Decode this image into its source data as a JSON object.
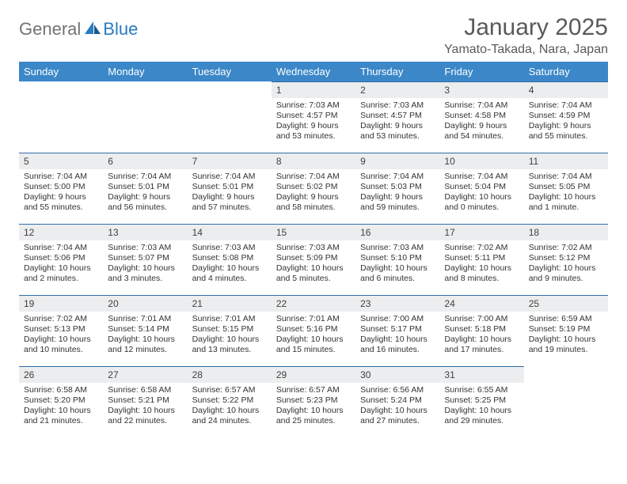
{
  "logo": {
    "part1": "General",
    "part2": "Blue"
  },
  "title": "January 2025",
  "location": "Yamato-Takada, Nara, Japan",
  "colors": {
    "header_bg": "#3b87c8",
    "header_text": "#ffffff",
    "daynum_bg": "#ecedee",
    "row_border": "#2f6fa8",
    "logo_gray": "#737373",
    "logo_blue": "#2b7bbf",
    "body_text": "#333333"
  },
  "weekdays": [
    "Sunday",
    "Monday",
    "Tuesday",
    "Wednesday",
    "Thursday",
    "Friday",
    "Saturday"
  ],
  "first_weekday_index": 3,
  "days": [
    {
      "n": 1,
      "sunrise": "7:03 AM",
      "sunset": "4:57 PM",
      "daylight": "9 hours and 53 minutes."
    },
    {
      "n": 2,
      "sunrise": "7:03 AM",
      "sunset": "4:57 PM",
      "daylight": "9 hours and 53 minutes."
    },
    {
      "n": 3,
      "sunrise": "7:04 AM",
      "sunset": "4:58 PM",
      "daylight": "9 hours and 54 minutes."
    },
    {
      "n": 4,
      "sunrise": "7:04 AM",
      "sunset": "4:59 PM",
      "daylight": "9 hours and 55 minutes."
    },
    {
      "n": 5,
      "sunrise": "7:04 AM",
      "sunset": "5:00 PM",
      "daylight": "9 hours and 55 minutes."
    },
    {
      "n": 6,
      "sunrise": "7:04 AM",
      "sunset": "5:01 PM",
      "daylight": "9 hours and 56 minutes."
    },
    {
      "n": 7,
      "sunrise": "7:04 AM",
      "sunset": "5:01 PM",
      "daylight": "9 hours and 57 minutes."
    },
    {
      "n": 8,
      "sunrise": "7:04 AM",
      "sunset": "5:02 PM",
      "daylight": "9 hours and 58 minutes."
    },
    {
      "n": 9,
      "sunrise": "7:04 AM",
      "sunset": "5:03 PM",
      "daylight": "9 hours and 59 minutes."
    },
    {
      "n": 10,
      "sunrise": "7:04 AM",
      "sunset": "5:04 PM",
      "daylight": "10 hours and 0 minutes."
    },
    {
      "n": 11,
      "sunrise": "7:04 AM",
      "sunset": "5:05 PM",
      "daylight": "10 hours and 1 minute."
    },
    {
      "n": 12,
      "sunrise": "7:04 AM",
      "sunset": "5:06 PM",
      "daylight": "10 hours and 2 minutes."
    },
    {
      "n": 13,
      "sunrise": "7:03 AM",
      "sunset": "5:07 PM",
      "daylight": "10 hours and 3 minutes."
    },
    {
      "n": 14,
      "sunrise": "7:03 AM",
      "sunset": "5:08 PM",
      "daylight": "10 hours and 4 minutes."
    },
    {
      "n": 15,
      "sunrise": "7:03 AM",
      "sunset": "5:09 PM",
      "daylight": "10 hours and 5 minutes."
    },
    {
      "n": 16,
      "sunrise": "7:03 AM",
      "sunset": "5:10 PM",
      "daylight": "10 hours and 6 minutes."
    },
    {
      "n": 17,
      "sunrise": "7:02 AM",
      "sunset": "5:11 PM",
      "daylight": "10 hours and 8 minutes."
    },
    {
      "n": 18,
      "sunrise": "7:02 AM",
      "sunset": "5:12 PM",
      "daylight": "10 hours and 9 minutes."
    },
    {
      "n": 19,
      "sunrise": "7:02 AM",
      "sunset": "5:13 PM",
      "daylight": "10 hours and 10 minutes."
    },
    {
      "n": 20,
      "sunrise": "7:01 AM",
      "sunset": "5:14 PM",
      "daylight": "10 hours and 12 minutes."
    },
    {
      "n": 21,
      "sunrise": "7:01 AM",
      "sunset": "5:15 PM",
      "daylight": "10 hours and 13 minutes."
    },
    {
      "n": 22,
      "sunrise": "7:01 AM",
      "sunset": "5:16 PM",
      "daylight": "10 hours and 15 minutes."
    },
    {
      "n": 23,
      "sunrise": "7:00 AM",
      "sunset": "5:17 PM",
      "daylight": "10 hours and 16 minutes."
    },
    {
      "n": 24,
      "sunrise": "7:00 AM",
      "sunset": "5:18 PM",
      "daylight": "10 hours and 17 minutes."
    },
    {
      "n": 25,
      "sunrise": "6:59 AM",
      "sunset": "5:19 PM",
      "daylight": "10 hours and 19 minutes."
    },
    {
      "n": 26,
      "sunrise": "6:58 AM",
      "sunset": "5:20 PM",
      "daylight": "10 hours and 21 minutes."
    },
    {
      "n": 27,
      "sunrise": "6:58 AM",
      "sunset": "5:21 PM",
      "daylight": "10 hours and 22 minutes."
    },
    {
      "n": 28,
      "sunrise": "6:57 AM",
      "sunset": "5:22 PM",
      "daylight": "10 hours and 24 minutes."
    },
    {
      "n": 29,
      "sunrise": "6:57 AM",
      "sunset": "5:23 PM",
      "daylight": "10 hours and 25 minutes."
    },
    {
      "n": 30,
      "sunrise": "6:56 AM",
      "sunset": "5:24 PM",
      "daylight": "10 hours and 27 minutes."
    },
    {
      "n": 31,
      "sunrise": "6:55 AM",
      "sunset": "5:25 PM",
      "daylight": "10 hours and 29 minutes."
    }
  ]
}
